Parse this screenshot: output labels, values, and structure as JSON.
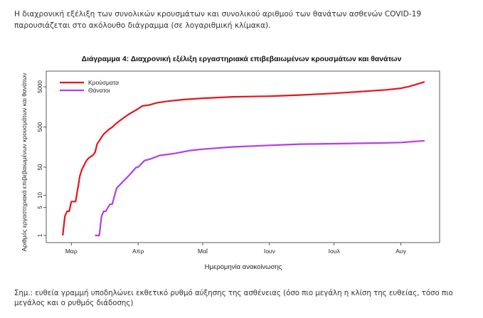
{
  "intro_text": "Η διαχρονική εξέλιξη των συνολικών κρουσμάτων και συνολικού αριθμού των θανάτων ασθενών COVID-19 παρουσιάζεται στο ακόλουθο διάγραμμα (σε λογαριθμική κλίμακα).",
  "note_text": "Σημ.: ευθεία γραμμή υποδηλώνει εκθετικό ρυθμό αύξησης της ασθένειας (όσο πιο μεγάλη η κλίση της ευθείας, τόσο πιο μεγάλος και ο ρυθμός διάδοσης)",
  "chart_data": {
    "type": "line",
    "title": "Διάγραμμα 4: Διαχρονική εξέλιξη εργαστηριακά επιβεβαιωμένων κρουσμάτων και θανάτων",
    "xlabel": "Ημερομηνία ανακοίνωσης",
    "ylabel": "Αριθμός εργαστηριακά επιβεβαιωμένων κρουσμάτων και θανάτων",
    "y_scale": "log",
    "ylim": [
      1,
      5000
    ],
    "xlim": [
      "2020-02-20",
      "2020-08-17"
    ],
    "y_ticks": [
      1,
      5,
      10,
      50,
      500,
      5000
    ],
    "x_ticks": [
      {
        "label": "Μαρ",
        "date": "2020-03-01"
      },
      {
        "label": "Απρ",
        "date": "2020-04-01"
      },
      {
        "label": "Μαΐ",
        "date": "2020-05-01"
      },
      {
        "label": "Ιουν",
        "date": "2020-06-01"
      },
      {
        "label": "Ιουλ",
        "date": "2020-07-01"
      },
      {
        "label": "Αυγ",
        "date": "2020-08-01"
      }
    ],
    "grid": false,
    "legend_position": "top-left",
    "series": [
      {
        "name": "Κρούσματα",
        "color": "#e8141c",
        "points": [
          [
            "2020-02-26",
            1
          ],
          [
            "2020-02-27",
            3
          ],
          [
            "2020-02-28",
            4
          ],
          [
            "2020-02-29",
            4
          ],
          [
            "2020-03-01",
            7
          ],
          [
            "2020-03-03",
            7
          ],
          [
            "2020-03-05",
            31
          ],
          [
            "2020-03-06",
            45
          ],
          [
            "2020-03-08",
            73
          ],
          [
            "2020-03-09",
            84
          ],
          [
            "2020-03-11",
            99
          ],
          [
            "2020-03-12",
            117
          ],
          [
            "2020-03-13",
            190
          ],
          [
            "2020-03-14",
            228
          ],
          [
            "2020-03-16",
            331
          ],
          [
            "2020-03-18",
            418
          ],
          [
            "2020-03-20",
            495
          ],
          [
            "2020-03-22",
            624
          ],
          [
            "2020-03-25",
            821
          ],
          [
            "2020-03-28",
            1061
          ],
          [
            "2020-03-31",
            1314
          ],
          [
            "2020-04-03",
            1673
          ],
          [
            "2020-04-06",
            1755
          ],
          [
            "2020-04-10",
            2011
          ],
          [
            "2020-04-15",
            2192
          ],
          [
            "2020-04-22",
            2401
          ],
          [
            "2020-05-01",
            2591
          ],
          [
            "2020-05-15",
            2819
          ],
          [
            "2020-06-01",
            2917
          ],
          [
            "2020-06-15",
            3121
          ],
          [
            "2020-07-01",
            3432
          ],
          [
            "2020-07-15",
            3854
          ],
          [
            "2020-07-25",
            4193
          ],
          [
            "2020-08-01",
            4587
          ],
          [
            "2020-08-05",
            5123
          ],
          [
            "2020-08-09",
            5942
          ],
          [
            "2020-08-12",
            6632
          ]
        ]
      },
      {
        "name": "Θάνατοι",
        "color": "#b43cf0",
        "points": [
          [
            "2020-03-12",
            1
          ],
          [
            "2020-03-14",
            1
          ],
          [
            "2020-03-15",
            3
          ],
          [
            "2020-03-16",
            4
          ],
          [
            "2020-03-17",
            4
          ],
          [
            "2020-03-18",
            5
          ],
          [
            "2020-03-19",
            6
          ],
          [
            "2020-03-20",
            6
          ],
          [
            "2020-03-22",
            15
          ],
          [
            "2020-03-25",
            22
          ],
          [
            "2020-03-28",
            32
          ],
          [
            "2020-03-31",
            49
          ],
          [
            "2020-04-01",
            50
          ],
          [
            "2020-04-04",
            73
          ],
          [
            "2020-04-07",
            81
          ],
          [
            "2020-04-11",
            98
          ],
          [
            "2020-04-18",
            110
          ],
          [
            "2020-04-25",
            130
          ],
          [
            "2020-05-01",
            140
          ],
          [
            "2020-05-15",
            160
          ],
          [
            "2020-06-01",
            175
          ],
          [
            "2020-06-15",
            187
          ],
          [
            "2020-07-01",
            192
          ],
          [
            "2020-07-20",
            199
          ],
          [
            "2020-08-01",
            206
          ],
          [
            "2020-08-12",
            228
          ]
        ]
      }
    ]
  }
}
